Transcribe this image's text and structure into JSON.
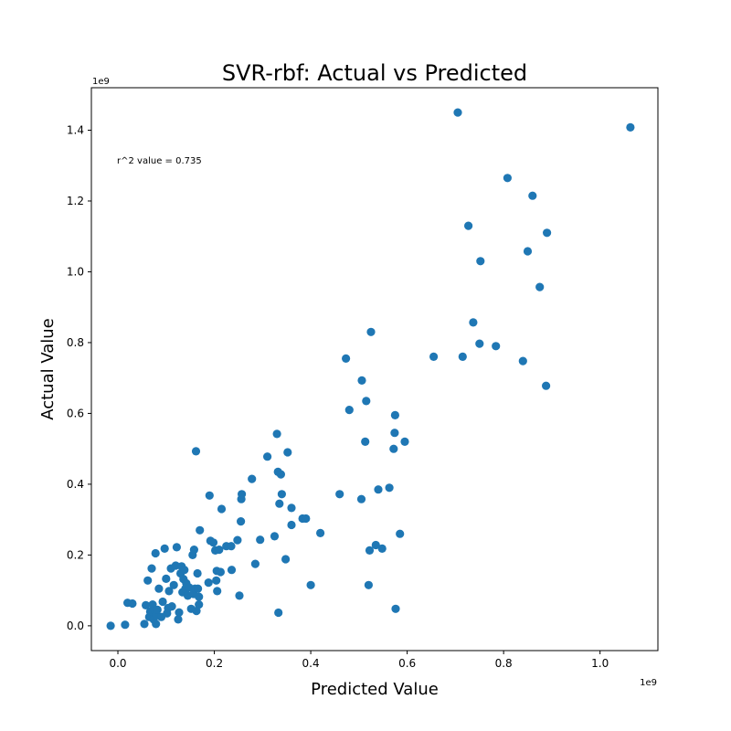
{
  "chart_data": {
    "type": "scatter",
    "title": "SVR-rbf: Actual vs Predicted",
    "xlabel": "Predicted Value",
    "ylabel": "Actual Value",
    "x_offset_label": "1e9",
    "y_offset_label": "1e9",
    "annotation": "r^2 value = 0.735",
    "xlim": [
      -0.055,
      1.12
    ],
    "ylim": [
      -0.07,
      1.52
    ],
    "xticks": [
      0.0,
      0.2,
      0.4,
      0.6,
      0.8,
      1.0
    ],
    "xtick_labels": [
      "0.0",
      "0.2",
      "0.4",
      "0.6",
      "0.8",
      "1.0"
    ],
    "yticks": [
      0.0,
      0.2,
      0.4,
      0.6,
      0.8,
      1.0,
      1.2,
      1.4
    ],
    "ytick_labels": [
      "0.0",
      "0.2",
      "0.4",
      "0.6",
      "0.8",
      "1.0",
      "1.2",
      "1.4"
    ],
    "grid": false,
    "marker_color": "#1f77b4",
    "points": [
      [
        -0.015,
        0.0
      ],
      [
        0.015,
        0.003
      ],
      [
        0.02,
        0.065
      ],
      [
        0.03,
        0.063
      ],
      [
        0.055,
        0.005
      ],
      [
        0.058,
        0.058
      ],
      [
        0.062,
        0.128
      ],
      [
        0.065,
        0.025
      ],
      [
        0.067,
        0.04
      ],
      [
        0.07,
        0.162
      ],
      [
        0.072,
        0.06
      ],
      [
        0.074,
        0.018
      ],
      [
        0.076,
        0.045
      ],
      [
        0.078,
        0.205
      ],
      [
        0.079,
        0.005
      ],
      [
        0.08,
        0.03
      ],
      [
        0.082,
        0.045
      ],
      [
        0.085,
        0.105
      ],
      [
        0.09,
        0.025
      ],
      [
        0.093,
        0.068
      ],
      [
        0.097,
        0.218
      ],
      [
        0.1,
        0.133
      ],
      [
        0.102,
        0.035
      ],
      [
        0.104,
        0.05
      ],
      [
        0.106,
        0.098
      ],
      [
        0.11,
        0.162
      ],
      [
        0.112,
        0.055
      ],
      [
        0.116,
        0.115
      ],
      [
        0.12,
        0.17
      ],
      [
        0.122,
        0.222
      ],
      [
        0.125,
        0.018
      ],
      [
        0.127,
        0.038
      ],
      [
        0.13,
        0.148
      ],
      [
        0.132,
        0.168
      ],
      [
        0.134,
        0.095
      ],
      [
        0.136,
        0.132
      ],
      [
        0.138,
        0.158
      ],
      [
        0.14,
        0.105
      ],
      [
        0.142,
        0.12
      ],
      [
        0.145,
        0.085
      ],
      [
        0.148,
        0.108
      ],
      [
        0.152,
        0.048
      ],
      [
        0.155,
        0.2
      ],
      [
        0.157,
        0.09
      ],
      [
        0.158,
        0.215
      ],
      [
        0.16,
        0.105
      ],
      [
        0.162,
        0.493
      ],
      [
        0.163,
        0.042
      ],
      [
        0.165,
        0.148
      ],
      [
        0.166,
        0.105
      ],
      [
        0.168,
        0.06
      ],
      [
        0.168,
        0.082
      ],
      [
        0.17,
        0.27
      ],
      [
        0.188,
        0.122
      ],
      [
        0.19,
        0.368
      ],
      [
        0.192,
        0.24
      ],
      [
        0.198,
        0.235
      ],
      [
        0.202,
        0.213
      ],
      [
        0.204,
        0.128
      ],
      [
        0.205,
        0.155
      ],
      [
        0.206,
        0.098
      ],
      [
        0.21,
        0.215
      ],
      [
        0.213,
        0.152
      ],
      [
        0.215,
        0.33
      ],
      [
        0.225,
        0.225
      ],
      [
        0.235,
        0.225
      ],
      [
        0.236,
        0.158
      ],
      [
        0.248,
        0.242
      ],
      [
        0.252,
        0.085
      ],
      [
        0.255,
        0.295
      ],
      [
        0.256,
        0.358
      ],
      [
        0.257,
        0.372
      ],
      [
        0.278,
        0.415
      ],
      [
        0.285,
        0.175
      ],
      [
        0.295,
        0.243
      ],
      [
        0.31,
        0.478
      ],
      [
        0.325,
        0.253
      ],
      [
        0.33,
        0.542
      ],
      [
        0.332,
        0.435
      ],
      [
        0.333,
        0.037
      ],
      [
        0.335,
        0.345
      ],
      [
        0.338,
        0.428
      ],
      [
        0.34,
        0.372
      ],
      [
        0.348,
        0.188
      ],
      [
        0.352,
        0.49
      ],
      [
        0.36,
        0.333
      ],
      [
        0.36,
        0.285
      ],
      [
        0.383,
        0.303
      ],
      [
        0.39,
        0.303
      ],
      [
        0.4,
        0.115
      ],
      [
        0.42,
        0.262
      ],
      [
        0.46,
        0.372
      ],
      [
        0.473,
        0.755
      ],
      [
        0.48,
        0.61
      ],
      [
        0.505,
        0.358
      ],
      [
        0.506,
        0.693
      ],
      [
        0.513,
        0.52
      ],
      [
        0.515,
        0.635
      ],
      [
        0.52,
        0.115
      ],
      [
        0.522,
        0.213
      ],
      [
        0.525,
        0.83
      ],
      [
        0.535,
        0.228
      ],
      [
        0.54,
        0.385
      ],
      [
        0.548,
        0.218
      ],
      [
        0.563,
        0.39
      ],
      [
        0.572,
        0.5
      ],
      [
        0.574,
        0.545
      ],
      [
        0.575,
        0.595
      ],
      [
        0.576,
        0.048
      ],
      [
        0.585,
        0.26
      ],
      [
        0.595,
        0.52
      ],
      [
        0.655,
        0.76
      ],
      [
        0.705,
        1.45
      ],
      [
        0.715,
        0.76
      ],
      [
        0.727,
        1.13
      ],
      [
        0.737,
        0.857
      ],
      [
        0.75,
        0.797
      ],
      [
        0.752,
        1.03
      ],
      [
        0.784,
        0.79
      ],
      [
        0.808,
        1.265
      ],
      [
        0.84,
        0.748
      ],
      [
        0.85,
        1.058
      ],
      [
        0.86,
        1.215
      ],
      [
        0.875,
        0.957
      ],
      [
        0.888,
        0.678
      ],
      [
        0.89,
        1.11
      ],
      [
        1.063,
        1.408
      ]
    ]
  }
}
